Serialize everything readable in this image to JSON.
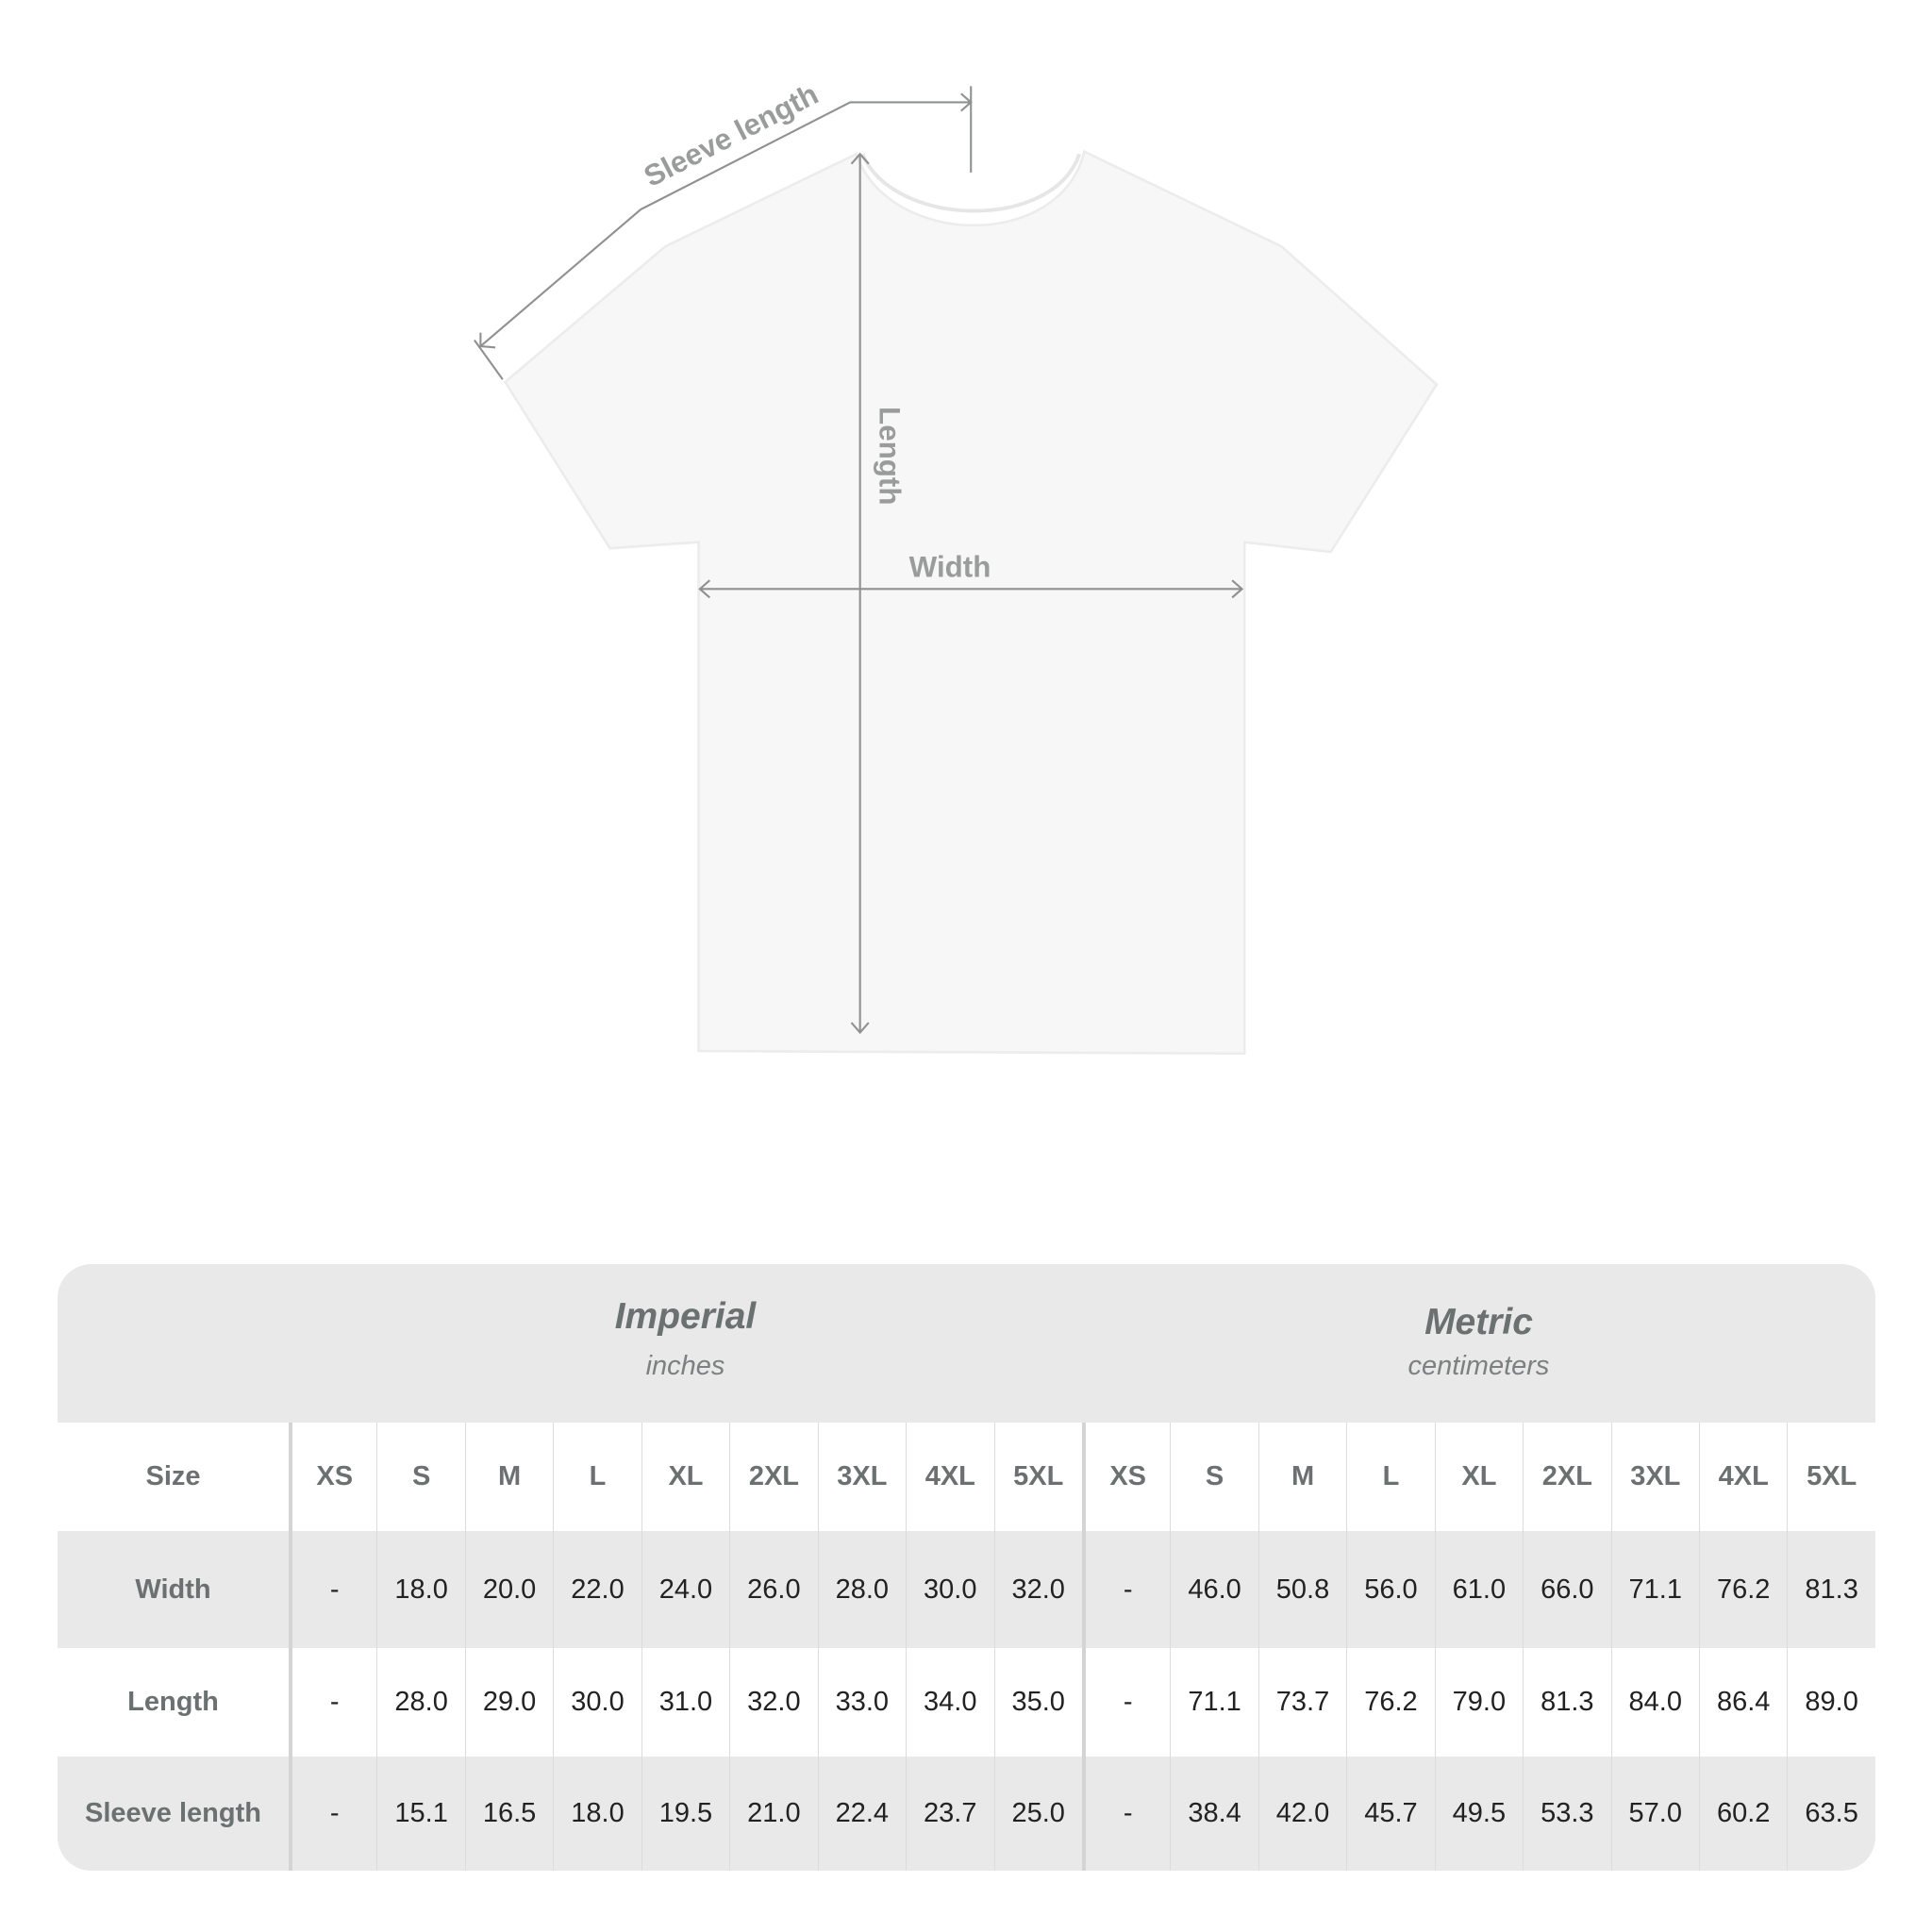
{
  "diagram": {
    "labels": {
      "sleeve_length": "Sleeve length",
      "length": "Length",
      "width": "Width"
    },
    "shirt_color": "#f7f7f7",
    "line_color": "#8f9191"
  },
  "table": {
    "imperial": {
      "title": "Imperial",
      "unit": "inches"
    },
    "metric": {
      "title": "Metric",
      "unit": "centimeters"
    },
    "size_label": "Size",
    "sizes": [
      "XS",
      "S",
      "M",
      "L",
      "XL",
      "2XL",
      "3XL",
      "4XL",
      "5XL"
    ],
    "rows": [
      {
        "label": "Width",
        "imperial": [
          "-",
          "18.0",
          "20.0",
          "22.0",
          "24.0",
          "26.0",
          "28.0",
          "30.0",
          "32.0"
        ],
        "metric": [
          "-",
          "46.0",
          "50.8",
          "56.0",
          "61.0",
          "66.0",
          "71.1",
          "76.2",
          "81.3"
        ]
      },
      {
        "label": "Length",
        "imperial": [
          "-",
          "28.0",
          "29.0",
          "30.0",
          "31.0",
          "32.0",
          "33.0",
          "34.0",
          "35.0"
        ],
        "metric": [
          "-",
          "71.1",
          "73.7",
          "76.2",
          "79.0",
          "81.3",
          "84.0",
          "86.4",
          "89.0"
        ]
      },
      {
        "label": "Sleeve length",
        "imperial": [
          "-",
          "15.1",
          "16.5",
          "18.0",
          "19.5",
          "21.0",
          "22.4",
          "23.7",
          "25.0"
        ],
        "metric": [
          "-",
          "38.4",
          "42.0",
          "45.7",
          "49.5",
          "53.3",
          "57.0",
          "60.2",
          "63.5"
        ]
      }
    ]
  }
}
